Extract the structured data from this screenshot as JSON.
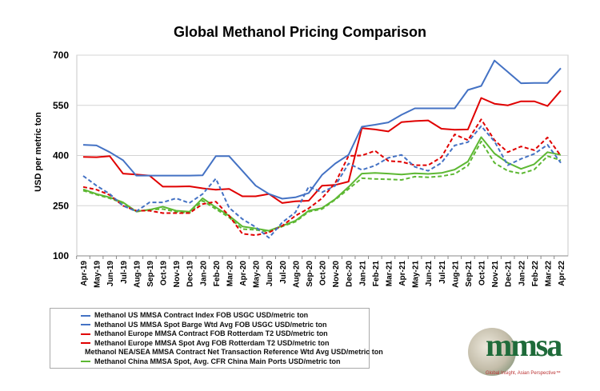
{
  "chart_data": {
    "type": "line",
    "title": "Global Methanol Pricing Comparison",
    "xlabel": "",
    "ylabel": "USD per metric ton",
    "ylim": [
      100,
      700
    ],
    "yticks": [
      "100",
      "250",
      "400",
      "550",
      "700"
    ],
    "grid": true,
    "legend_position": "bottom",
    "categories": [
      "Apr-19",
      "May-19",
      "Jun-19",
      "Jul-19",
      "Aug-19",
      "Sep-19",
      "Oct-19",
      "Nov-19",
      "Dec-19",
      "Jan-20",
      "Feb-20",
      "Mar-20",
      "Apr-20",
      "May-20",
      "Jun-20",
      "Jul-20",
      "Aug-20",
      "Sep-20",
      "Oct-20",
      "Nov-20",
      "Dec-20",
      "Jan-21",
      "Feb-21",
      "Mar-21",
      "Apr-21",
      "May-21",
      "Jun-21",
      "Jul-21",
      "Aug-21",
      "Sep-21",
      "Oct-21",
      "Nov-21",
      "Dec-21",
      "Jan-22",
      "Feb-22",
      "Mar-22",
      "Apr-22"
    ],
    "series": [
      {
        "name": "Methanol US MMSA Contract Index FOB USGC USD/metric ton",
        "color": "#4472C4",
        "dash": false,
        "values": [
          432,
          430,
          410,
          386,
          340,
          340,
          340,
          340,
          340,
          341,
          398,
          398,
          354,
          310,
          285,
          271,
          275,
          288,
          342,
          376,
          402,
          486,
          492,
          499,
          522,
          541,
          541,
          541,
          541,
          596,
          608,
          684,
          650,
          616,
          617,
          617,
          661
        ]
      },
      {
        "name": "Methanol US MMSA Spot Barge Wtd Avg FOB USGC USD/metric ton",
        "color": "#4472C4",
        "dash": true,
        "values": [
          339,
          310,
          285,
          250,
          233,
          260,
          260,
          272,
          258,
          285,
          331,
          244,
          210,
          186,
          154,
          200,
          230,
          307,
          290,
          310,
          376,
          357,
          370,
          393,
          402,
          366,
          354,
          378,
          430,
          440,
          488,
          442,
          371,
          390,
          405,
          432,
          378
        ]
      },
      {
        "name": "Methanol Europe MMSA Contract FOB Rotterdam T2 USD/metric ton",
        "color": "#E00000",
        "dash": false,
        "values": [
          396,
          395,
          398,
          346,
          343,
          340,
          307,
          307,
          308,
          302,
          298,
          300,
          278,
          278,
          285,
          258,
          263,
          265,
          310,
          312,
          322,
          482,
          478,
          472,
          500,
          503,
          505,
          480,
          477,
          478,
          572,
          555,
          550,
          562,
          562,
          548,
          594
        ]
      },
      {
        "name": "Methanol Europe MMSA Spot Avg FOB Rotterdam T2 USD/metric ton",
        "color": "#E00000",
        "dash": true,
        "values": [
          306,
          298,
          282,
          250,
          235,
          235,
          228,
          228,
          228,
          255,
          262,
          220,
          166,
          162,
          170,
          190,
          220,
          242,
          272,
          318,
          399,
          400,
          414,
          384,
          381,
          371,
          371,
          395,
          463,
          446,
          508,
          446,
          410,
          427,
          416,
          454,
          399
        ]
      },
      {
        "name": "Methanol NEA/SEA MMSA Contract Net Transaction Reference Wtd Avg USD/metric ton",
        "color": "#5DB833",
        "dash": false,
        "values": [
          299,
          285,
          275,
          260,
          233,
          238,
          247,
          235,
          232,
          272,
          245,
          220,
          188,
          182,
          175,
          190,
          205,
          235,
          243,
          270,
          306,
          346,
          348,
          346,
          343,
          347,
          345,
          348,
          358,
          382,
          455,
          406,
          378,
          360,
          374,
          410,
          402
        ]
      },
      {
        "name": "Methanol China MMSA Spot, Avg. CFR China Main Ports USD/metric ton",
        "color": "#5DB833",
        "dash": true,
        "values": [
          295,
          283,
          272,
          258,
          232,
          238,
          240,
          232,
          228,
          265,
          240,
          215,
          180,
          178,
          172,
          188,
          202,
          232,
          240,
          268,
          300,
          332,
          330,
          329,
          327,
          337,
          335,
          338,
          345,
          370,
          442,
          378,
          354,
          346,
          358,
          398,
          386
        ]
      }
    ]
  },
  "logo": {
    "text": "mmsa",
    "tagline": "Global Insight, Asian Perspective™"
  }
}
